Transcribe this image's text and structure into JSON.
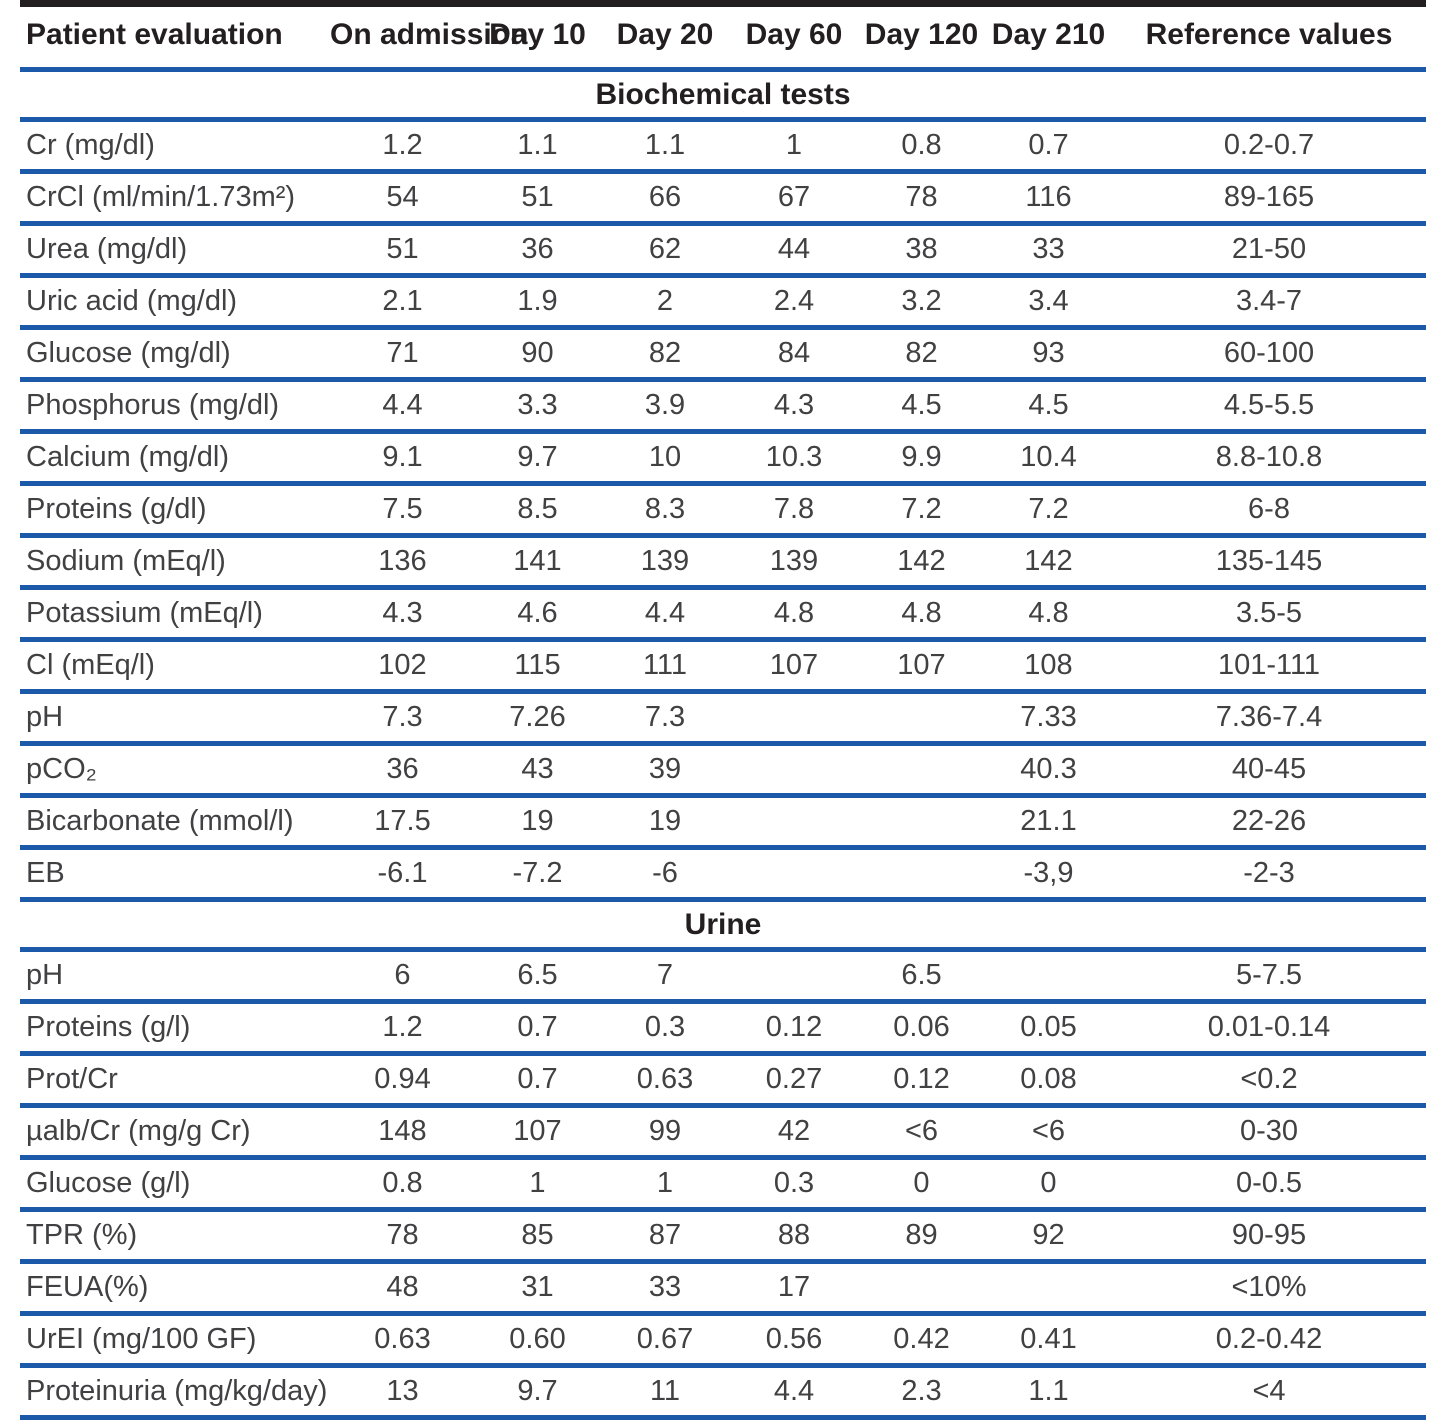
{
  "page": {
    "background_color": "#ffffff",
    "top_rule_color": "#231f20",
    "divider_color": "#1c5aa9",
    "header_text_color": "#231f20",
    "body_text_color": "#414042"
  },
  "table": {
    "columns": [
      "Patient evaluation",
      "On admission",
      "Day 10",
      "Day 20",
      "Day 60",
      "Day 120",
      "Day 210",
      "Reference values"
    ],
    "sections": [
      {
        "title": "Biochemical tests",
        "rows": [
          {
            "label": "Cr (mg/dl)",
            "values": [
              "1.2",
              "1.1",
              "1.1",
              "1",
              "0.8",
              "0.7"
            ],
            "reference": "0.2-0.7"
          },
          {
            "label": "CrCl (ml/min/1.73m²)",
            "values": [
              "54",
              "51",
              "66",
              "67",
              "78",
              "116"
            ],
            "reference": "89-165"
          },
          {
            "label": "Urea (mg/dl)",
            "values": [
              "51",
              "36",
              "62",
              "44",
              "38",
              "33"
            ],
            "reference": "21-50"
          },
          {
            "label": "Uric acid (mg/dl)",
            "values": [
              "2.1",
              "1.9",
              "2",
              "2.4",
              "3.2",
              "3.4"
            ],
            "reference": "3.4-7"
          },
          {
            "label": "Glucose (mg/dl)",
            "values": [
              "71",
              "90",
              "82",
              "84",
              "82",
              "93"
            ],
            "reference": "60-100"
          },
          {
            "label": "Phosphorus (mg/dl)",
            "values": [
              "4.4",
              "3.3",
              "3.9",
              "4.3",
              "4.5",
              "4.5"
            ],
            "reference": "4.5-5.5"
          },
          {
            "label": "Calcium (mg/dl)",
            "values": [
              "9.1",
              "9.7",
              "10",
              "10.3",
              "9.9",
              "10.4"
            ],
            "reference": "8.8-10.8"
          },
          {
            "label": "Proteins (g/dl)",
            "values": [
              "7.5",
              "8.5",
              "8.3",
              "7.8",
              "7.2",
              "7.2"
            ],
            "reference": "6-8"
          },
          {
            "label": "Sodium (mEq/l)",
            "values": [
              "136",
              "141",
              "139",
              "139",
              "142",
              "142"
            ],
            "reference": "135-145"
          },
          {
            "label": "Potassium (mEq/l)",
            "values": [
              "4.3",
              "4.6",
              "4.4",
              "4.8",
              "4.8",
              "4.8"
            ],
            "reference": "3.5-5"
          },
          {
            "label": "Cl (mEq/l)",
            "values": [
              "102",
              "115",
              "111",
              "107",
              "107",
              "108"
            ],
            "reference": "101-111"
          },
          {
            "label": "pH",
            "values": [
              "7.3",
              "7.26",
              "7.3",
              "",
              "",
              "7.33"
            ],
            "reference": "7.36-7.4"
          },
          {
            "label": "pCO₂",
            "values": [
              "36",
              "43",
              "39",
              "",
              "",
              "40.3"
            ],
            "reference": "40-45"
          },
          {
            "label": "Bicarbonate (mmol/l)",
            "values": [
              "17.5",
              "19",
              "19",
              "",
              "",
              "21.1"
            ],
            "reference": "22-26"
          },
          {
            "label": "EB",
            "values": [
              "-6.1",
              "-7.2",
              "-6",
              "",
              "",
              "-3,9"
            ],
            "reference": "-2-3"
          }
        ]
      },
      {
        "title": "Urine",
        "rows": [
          {
            "label": "pH",
            "values": [
              "6",
              "6.5",
              "7",
              "",
              "6.5",
              ""
            ],
            "reference": "5-7.5"
          },
          {
            "label": "Proteins (g/l)",
            "values": [
              "1.2",
              "0.7",
              "0.3",
              "0.12",
              "0.06",
              "0.05"
            ],
            "reference": "0.01-0.14"
          },
          {
            "label": "Prot/Cr",
            "values": [
              "0.94",
              "0.7",
              "0.63",
              "0.27",
              "0.12",
              "0.08"
            ],
            "reference": "<0.2"
          },
          {
            "label": "µalb/Cr (mg/g Cr)",
            "values": [
              "148",
              "107",
              "99",
              "42",
              "<6",
              "<6"
            ],
            "reference": "0-30"
          },
          {
            "label": "Glucose (g/l)",
            "values": [
              "0.8",
              "1",
              "1",
              "0.3",
              "0",
              "0"
            ],
            "reference": "0-0.5"
          },
          {
            "label": "TPR (%)",
            "values": [
              "78",
              "85",
              "87",
              "88",
              "89",
              "92"
            ],
            "reference": "90-95"
          },
          {
            "label": "FEUA(%)",
            "values": [
              "48",
              "31",
              "33",
              "17",
              "",
              ""
            ],
            "reference": "<10%"
          },
          {
            "label": "UrEI (mg/100 GF)",
            "values": [
              "0.63",
              "0.60",
              "0.67",
              "0.56",
              "0.42",
              "0.41"
            ],
            "reference": "0.2-0.42"
          },
          {
            "label": "Proteinuria (mg/kg/day)",
            "values": [
              "13",
              "9.7",
              "11",
              "4.4",
              "2.3",
              "1.1"
            ],
            "reference": "<4"
          }
        ]
      }
    ]
  }
}
